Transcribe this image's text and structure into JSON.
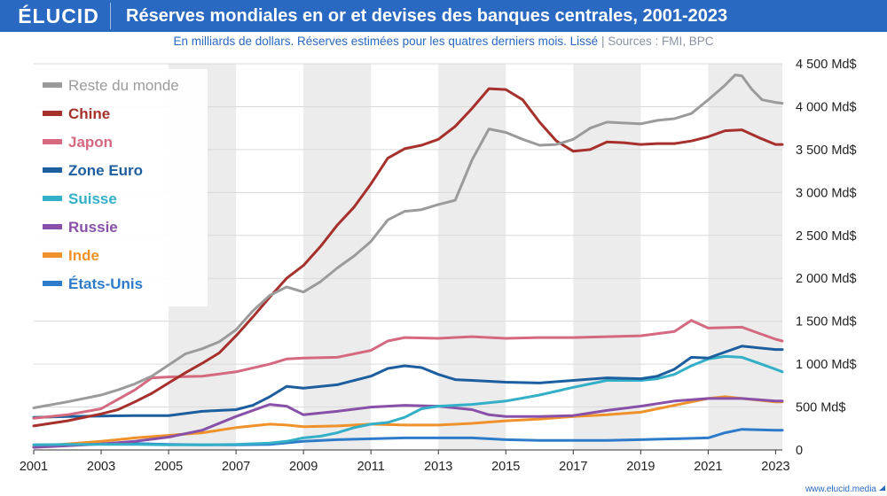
{
  "header": {
    "logo": "ÉLUCID",
    "title": "Réserves mondiales en or et devises des banques centrales, 2001-2023",
    "subtitle": "En milliards de dollars. Réserves estimées pour les quatres derniers mois. Lissé",
    "separator": "|",
    "sources": "Sources : FMI, BPC"
  },
  "footer": {
    "site": "www.elucid.media"
  },
  "colors": {
    "brand": "#2a69c1",
    "band_shade": "#ececec"
  },
  "chart_data": {
    "type": "line",
    "xlim": [
      2001,
      2023.2
    ],
    "ylim": [
      0,
      4500
    ],
    "x_ticks": [
      2001,
      2003,
      2005,
      2007,
      2009,
      2011,
      2013,
      2015,
      2017,
      2019,
      2021,
      2023
    ],
    "x_tick_labels": [
      "2001",
      "2003",
      "2005",
      "2007",
      "2009",
      "2011",
      "2013",
      "2015",
      "2017",
      "2019",
      "2021",
      "2023"
    ],
    "y_ticks": [
      0,
      500,
      1000,
      1500,
      2000,
      2500,
      3000,
      3500,
      4000,
      4500
    ],
    "y_tick_labels": [
      "0",
      "500 Md$",
      "1 000 Md$",
      "1 500 Md$",
      "2 000 Md$",
      "2 500 Md$",
      "3 000 Md$",
      "3 500 Md$",
      "4 000 Md$",
      "4 500 Md$"
    ],
    "shaded_periods": [
      [
        2005,
        2007
      ],
      [
        2009,
        2011
      ],
      [
        2013,
        2015
      ],
      [
        2017,
        2019
      ],
      [
        2021,
        2023.2
      ]
    ],
    "grid": true,
    "legend_position": "top-left",
    "series": [
      {
        "name": "Reste du monde",
        "color": "#9b9b9b",
        "x": [
          2001,
          2002,
          2003,
          2003.5,
          2004,
          2004.5,
          2005,
          2005.5,
          2006,
          2006.5,
          2007,
          2007.5,
          2008,
          2008.5,
          2009,
          2009.5,
          2010,
          2010.5,
          2011,
          2011.5,
          2012,
          2012.5,
          2013,
          2013.5,
          2014,
          2014.5,
          2015,
          2015.5,
          2016,
          2016.5,
          2017,
          2017.5,
          2018,
          2018.5,
          2019,
          2019.5,
          2020,
          2020.5,
          2021,
          2021.5,
          2021.8,
          2022,
          2022.3,
          2022.6,
          2023,
          2023.2
        ],
        "y": [
          490,
          560,
          640,
          700,
          770,
          860,
          990,
          1120,
          1180,
          1260,
          1400,
          1620,
          1800,
          1900,
          1840,
          1960,
          2120,
          2260,
          2430,
          2680,
          2780,
          2800,
          2860,
          2910,
          3380,
          3740,
          3700,
          3620,
          3550,
          3560,
          3620,
          3750,
          3820,
          3810,
          3800,
          3840,
          3860,
          3920,
          4080,
          4250,
          4370,
          4360,
          4200,
          4080,
          4050,
          4040
        ]
      },
      {
        "name": "Chine",
        "color": "#a6302b",
        "x": [
          2001,
          2002,
          2003,
          2003.5,
          2004,
          2004.5,
          2005,
          2005.5,
          2006,
          2006.5,
          2007,
          2007.5,
          2008,
          2008.5,
          2009,
          2009.5,
          2010,
          2010.5,
          2011,
          2011.5,
          2012,
          2012.5,
          2013,
          2013.5,
          2014,
          2014.5,
          2015,
          2015.5,
          2016,
          2016.5,
          2017,
          2017.5,
          2018,
          2018.5,
          2019,
          2019.5,
          2020,
          2020.5,
          2021,
          2021.5,
          2022,
          2022.5,
          2023,
          2023.2
        ],
        "y": [
          280,
          340,
          420,
          470,
          560,
          660,
          780,
          900,
          1010,
          1130,
          1330,
          1550,
          1780,
          2000,
          2150,
          2370,
          2620,
          2830,
          3100,
          3400,
          3510,
          3550,
          3620,
          3770,
          3980,
          4210,
          4200,
          4080,
          3820,
          3600,
          3480,
          3500,
          3590,
          3580,
          3560,
          3570,
          3570,
          3600,
          3650,
          3720,
          3730,
          3640,
          3560,
          3560
        ]
      },
      {
        "name": "Japon",
        "color": "#d4697f",
        "x": [
          2001,
          2002,
          2003,
          2004,
          2004.5,
          2005,
          2006,
          2007,
          2008,
          2008.5,
          2009,
          2010,
          2011,
          2011.5,
          2012,
          2013,
          2014,
          2015,
          2016,
          2017,
          2018,
          2019,
          2020,
          2020.5,
          2021,
          2022,
          2023,
          2023.2
        ],
        "y": [
          370,
          410,
          480,
          700,
          840,
          850,
          860,
          910,
          1000,
          1060,
          1070,
          1080,
          1160,
          1270,
          1310,
          1300,
          1320,
          1300,
          1310,
          1310,
          1320,
          1330,
          1380,
          1510,
          1420,
          1430,
          1290,
          1270
        ]
      },
      {
        "name": "Zone Euro",
        "color": "#1d5e9e",
        "x": [
          2001,
          2002,
          2003,
          2004,
          2005,
          2006,
          2007,
          2007.5,
          2008,
          2008.5,
          2009,
          2010,
          2011,
          2011.5,
          2012,
          2012.5,
          2013,
          2013.5,
          2014,
          2015,
          2016,
          2017,
          2018,
          2019,
          2019.5,
          2020,
          2020.5,
          2021,
          2021.5,
          2022,
          2022.5,
          2023,
          2023.2
        ],
        "y": [
          380,
          390,
          395,
          400,
          400,
          450,
          470,
          520,
          620,
          740,
          720,
          760,
          860,
          950,
          980,
          960,
          880,
          820,
          810,
          790,
          780,
          810,
          840,
          830,
          860,
          940,
          1080,
          1070,
          1140,
          1210,
          1190,
          1170,
          1170
        ]
      },
      {
        "name": "Suisse",
        "color": "#33b0c7",
        "x": [
          2001,
          2002,
          2003,
          2004,
          2005,
          2006,
          2007,
          2008,
          2008.5,
          2009,
          2009.5,
          2010,
          2010.5,
          2011,
          2011.5,
          2012,
          2012.5,
          2013,
          2014,
          2015,
          2016,
          2017,
          2018,
          2019,
          2019.5,
          2020,
          2020.5,
          2021,
          2021.5,
          2022,
          2022.5,
          2023,
          2023.2
        ],
        "y": [
          60,
          65,
          65,
          65,
          60,
          60,
          65,
          80,
          100,
          140,
          160,
          200,
          260,
          300,
          320,
          380,
          480,
          510,
          530,
          570,
          640,
          730,
          810,
          810,
          830,
          880,
          980,
          1060,
          1090,
          1080,
          1010,
          940,
          910
        ]
      },
      {
        "name": "Russie",
        "color": "#8850a8",
        "x": [
          2001,
          2002,
          2003,
          2004,
          2005,
          2006,
          2007,
          2008,
          2008.5,
          2009,
          2010,
          2011,
          2012,
          2013,
          2014,
          2014.5,
          2015,
          2016,
          2017,
          2018,
          2019,
          2020,
          2021,
          2022,
          2023,
          2023.2
        ],
        "y": [
          30,
          50,
          70,
          100,
          150,
          230,
          390,
          530,
          510,
          410,
          450,
          500,
          520,
          510,
          470,
          410,
          390,
          390,
          400,
          460,
          510,
          570,
          600,
          600,
          570,
          570
        ]
      },
      {
        "name": "Inde",
        "color": "#f0922b",
        "x": [
          2001,
          2002,
          2003,
          2004,
          2005,
          2006,
          2007,
          2008,
          2008.5,
          2009,
          2010,
          2011,
          2012,
          2013,
          2014,
          2015,
          2016,
          2017,
          2018,
          2019,
          2020,
          2021,
          2021.5,
          2022,
          2023,
          2023.2
        ],
        "y": [
          40,
          70,
          100,
          140,
          170,
          200,
          260,
          300,
          290,
          270,
          280,
          300,
          290,
          290,
          310,
          340,
          360,
          390,
          410,
          440,
          520,
          600,
          620,
          600,
          560,
          560
        ]
      },
      {
        "name": "États-Unis",
        "color": "#2e7cc9",
        "x": [
          2001,
          2002,
          2003,
          2004,
          2005,
          2006,
          2007,
          2008,
          2009,
          2010,
          2011,
          2012,
          2013,
          2014,
          2015,
          2016,
          2017,
          2018,
          2019,
          2020,
          2021,
          2021.5,
          2022,
          2023,
          2023.2
        ],
        "y": [
          60,
          60,
          70,
          75,
          65,
          60,
          60,
          65,
          100,
          120,
          130,
          140,
          140,
          140,
          120,
          110,
          110,
          110,
          120,
          130,
          140,
          200,
          240,
          230,
          230
        ]
      }
    ]
  }
}
